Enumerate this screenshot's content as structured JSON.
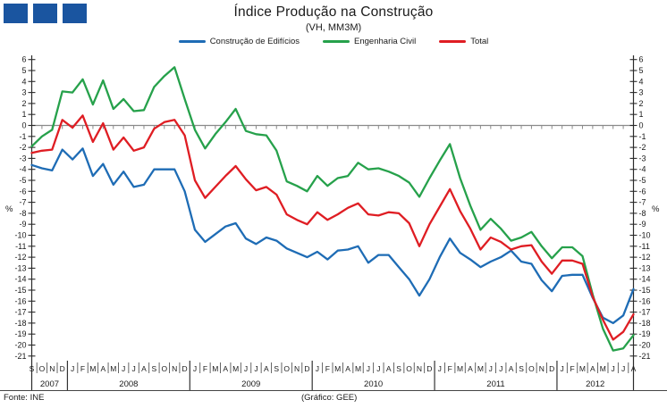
{
  "header": {
    "title": "Índice Produção na Construção",
    "subtitle": "(VH, MM3M)"
  },
  "logo": {
    "color": "#1A55A0",
    "square_count": 3
  },
  "footer": {
    "source": "Fonte:  INE",
    "credit": "(Gráfico:  GEE)"
  },
  "chart_data": {
    "type": "line",
    "title": "Índice Produção na Construção",
    "subtitle": "(VH, MM3M)",
    "ylabel_left": "%",
    "ylabel_right": "%",
    "ylim": [
      -21,
      6
    ],
    "ytick_step": 1,
    "grid": "zero-line-only",
    "legend_position": "top",
    "axis_color": "#2b2b2b",
    "zero_line_color": "#8a8a8a",
    "months": [
      "S",
      "O",
      "N",
      "D",
      "J",
      "F",
      "M",
      "A",
      "M",
      "J",
      "J",
      "A",
      "S",
      "O",
      "N",
      "D",
      "J",
      "F",
      "M",
      "A",
      "M",
      "J",
      "J",
      "A",
      "S",
      "O",
      "N",
      "D",
      "J",
      "F",
      "M",
      "A",
      "M",
      "J",
      "J",
      "A",
      "S",
      "O",
      "N",
      "D",
      "J",
      "F",
      "M",
      "A",
      "M",
      "J",
      "J",
      "A",
      "S",
      "O",
      "N",
      "D",
      "J",
      "F",
      "M",
      "A",
      "M",
      "J",
      "J",
      "A"
    ],
    "years": [
      {
        "label": "2007",
        "count": 4
      },
      {
        "label": "2008",
        "count": 12
      },
      {
        "label": "2009",
        "count": 12
      },
      {
        "label": "2010",
        "count": 12
      },
      {
        "label": "2011",
        "count": 12
      },
      {
        "label": "2012",
        "count": 8
      }
    ],
    "series": [
      {
        "name": "Construção de Edifícios",
        "color": "#1E6CB5",
        "values": [
          -3.6,
          -3.9,
          -4.1,
          -2.2,
          -3.1,
          -2.1,
          -4.6,
          -3.5,
          -5.4,
          -4.2,
          -5.6,
          -5.4,
          -4.0,
          -4.0,
          -4.0,
          -6.0,
          -9.5,
          -10.6,
          -9.9,
          -9.2,
          -8.9,
          -10.3,
          -10.8,
          -10.2,
          -10.5,
          -11.2,
          -11.6,
          -12.0,
          -11.5,
          -12.2,
          -11.4,
          -11.3,
          -11.0,
          -12.5,
          -11.8,
          -11.8,
          -12.9,
          -14.0,
          -15.5,
          -14.0,
          -12.0,
          -10.3,
          -11.6,
          -12.2,
          -12.9,
          -12.4,
          -12.0,
          -11.4,
          -12.4,
          -12.6,
          -14.1,
          -15.1,
          -13.7,
          -13.6,
          -13.6,
          -15.7,
          -17.5,
          -18.0,
          -17.3,
          -14.9
        ]
      },
      {
        "name": "Engenharia Civil",
        "color": "#26A14B",
        "values": [
          -1.9,
          -1.0,
          -0.4,
          3.1,
          3.0,
          4.2,
          1.9,
          4.1,
          1.5,
          2.4,
          1.3,
          1.4,
          3.5,
          4.5,
          5.3,
          2.4,
          -0.4,
          -2.1,
          -0.8,
          0.3,
          1.5,
          -0.5,
          -0.8,
          -0.9,
          -2.3,
          -5.1,
          -5.5,
          -6.0,
          -4.6,
          -5.5,
          -4.8,
          -4.6,
          -3.4,
          -4.0,
          -3.9,
          -4.2,
          -4.6,
          -5.2,
          -6.5,
          -4.8,
          -3.2,
          -1.7,
          -4.8,
          -7.3,
          -9.5,
          -8.5,
          -9.4,
          -10.5,
          -10.2,
          -9.7,
          -11.0,
          -12.1,
          -11.1,
          -11.1,
          -11.9,
          -15.4,
          -18.5,
          -20.5,
          -20.3,
          -19.1
        ]
      },
      {
        "name": "Total",
        "color": "#DF1D23",
        "values": [
          -2.5,
          -2.3,
          -2.2,
          0.5,
          -0.2,
          0.9,
          -1.5,
          0.2,
          -2.2,
          -1.1,
          -2.3,
          -2.0,
          -0.3,
          0.3,
          0.5,
          -0.9,
          -5.0,
          -6.6,
          -5.6,
          -4.6,
          -3.7,
          -4.9,
          -5.9,
          -5.6,
          -6.3,
          -8.1,
          -8.6,
          -9.0,
          -7.9,
          -8.6,
          -8.1,
          -7.5,
          -7.1,
          -8.1,
          -8.2,
          -7.9,
          -8.0,
          -8.9,
          -11.0,
          -9.0,
          -7.4,
          -5.8,
          -7.8,
          -9.4,
          -11.3,
          -10.2,
          -10.6,
          -11.3,
          -11.0,
          -10.9,
          -12.4,
          -13.5,
          -12.3,
          -12.3,
          -12.6,
          -15.6,
          -17.7,
          -19.5,
          -18.8,
          -17.2
        ]
      }
    ]
  }
}
